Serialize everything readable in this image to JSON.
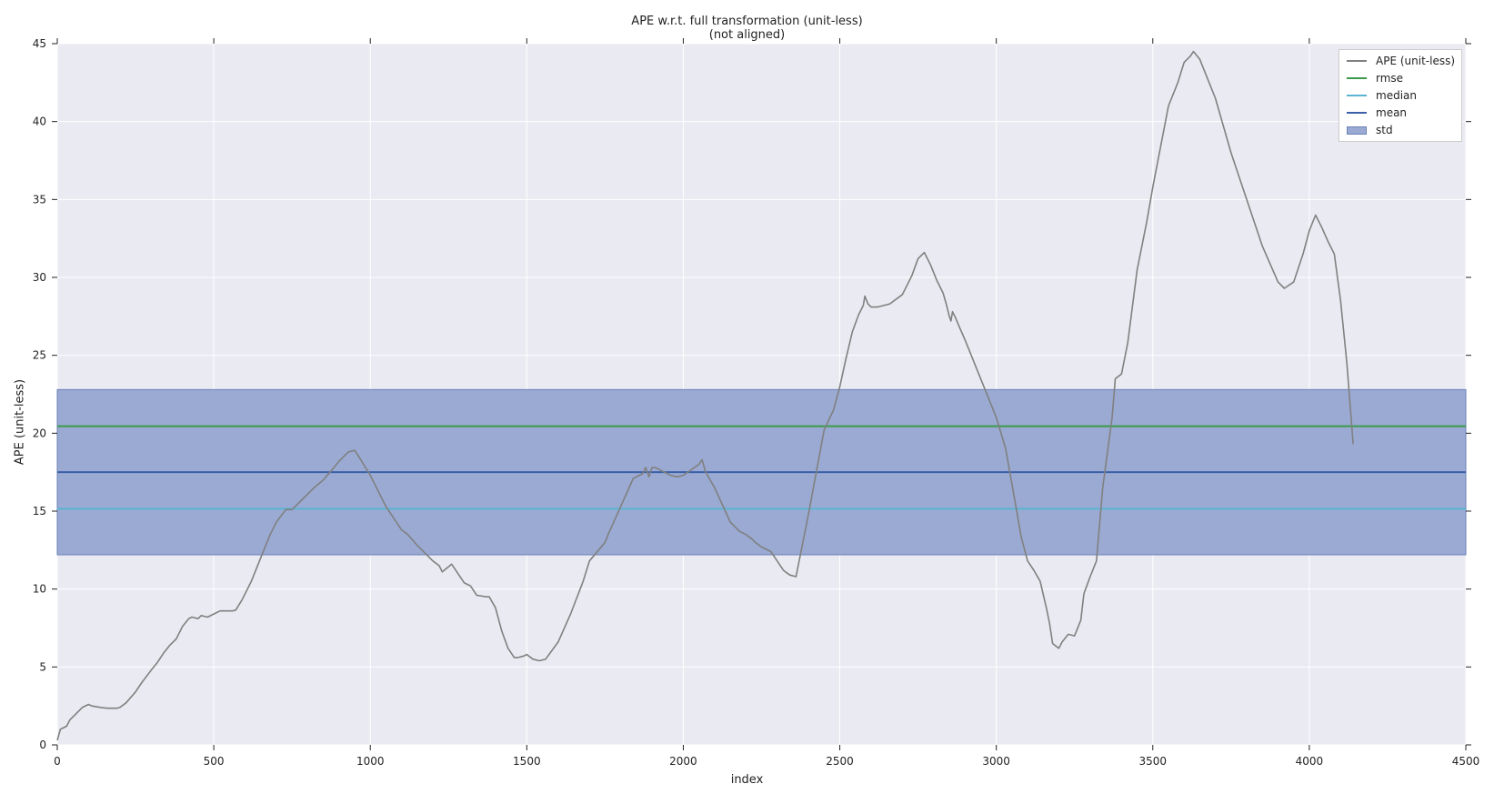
{
  "chart_data": {
    "type": "line",
    "title_lines": [
      "APE w.r.t. full transformation (unit-less)",
      "(not aligned)"
    ],
    "xlabel": "index",
    "ylabel": "APE (unit-less)",
    "xlim": [
      0,
      4500
    ],
    "ylim": [
      0,
      45
    ],
    "xticks": [
      0,
      500,
      1000,
      1500,
      2000,
      2500,
      3000,
      3500,
      4000,
      4500
    ],
    "yticks": [
      0,
      5,
      10,
      15,
      20,
      25,
      30,
      35,
      40,
      45
    ],
    "grid": true,
    "legend_position": "top-right",
    "series": [
      {
        "name": "APE (unit-less)",
        "color": "#808080",
        "x": [
          0,
          10,
          30,
          40,
          60,
          80,
          100,
          110,
          140,
          160,
          190,
          200,
          220,
          250,
          270,
          300,
          320,
          340,
          360,
          380,
          400,
          420,
          430,
          450,
          460,
          480,
          500,
          520,
          560,
          570,
          590,
          620,
          650,
          680,
          700,
          730,
          750,
          760,
          780,
          800,
          820,
          850,
          880,
          900,
          930,
          950,
          960,
          1000,
          1050,
          1100,
          1120,
          1150,
          1200,
          1220,
          1230,
          1260,
          1300,
          1310,
          1320,
          1340,
          1370,
          1380,
          1400,
          1420,
          1440,
          1460,
          1470,
          1490,
          1500,
          1520,
          1540,
          1560,
          1600,
          1640,
          1680,
          1700,
          1750,
          1760,
          1800,
          1840,
          1870,
          1880,
          1890,
          1900,
          1910,
          1920,
          1940,
          1960,
          1980,
          2000,
          2050,
          2060,
          2070,
          2080,
          2100,
          2150,
          2180,
          2200,
          2220,
          2230,
          2250,
          2280,
          2300,
          2320,
          2340,
          2360,
          2400,
          2450,
          2480,
          2500,
          2520,
          2540,
          2560,
          2575,
          2580,
          2590,
          2600,
          2620,
          2660,
          2700,
          2730,
          2750,
          2770,
          2790,
          2810,
          2830,
          2840,
          2850,
          2855,
          2860,
          2870,
          2880,
          2900,
          2950,
          3000,
          3030,
          3060,
          3080,
          3100,
          3120,
          3140,
          3160,
          3170,
          3180,
          3200,
          3210,
          3230,
          3250,
          3270,
          3280,
          3300,
          3320,
          3340,
          3370,
          3380,
          3400,
          3420,
          3450,
          3480,
          3500,
          3550,
          3580,
          3600,
          3620,
          3630,
          3650,
          3700,
          3750,
          3800,
          3850,
          3900,
          3920,
          3950,
          3980,
          4000,
          4020,
          4040,
          4060,
          4080,
          4100,
          4120,
          4140
        ],
        "y": [
          0.3,
          1.0,
          1.2,
          1.6,
          2.0,
          2.4,
          2.6,
          2.5,
          2.4,
          2.35,
          2.35,
          2.4,
          2.7,
          3.4,
          4.0,
          4.8,
          5.3,
          5.9,
          6.4,
          6.8,
          7.6,
          8.1,
          8.2,
          8.1,
          8.3,
          8.2,
          8.4,
          8.6,
          8.6,
          8.65,
          9.3,
          10.5,
          12.0,
          13.5,
          14.3,
          15.1,
          15.1,
          15.3,
          15.7,
          16.1,
          16.5,
          17.0,
          17.7,
          18.2,
          18.8,
          18.9,
          18.6,
          17.3,
          15.3,
          13.8,
          13.5,
          12.8,
          11.8,
          11.5,
          11.1,
          11.6,
          10.4,
          10.3,
          10.2,
          9.6,
          9.5,
          9.5,
          8.8,
          7.3,
          6.2,
          5.6,
          5.6,
          5.7,
          5.8,
          5.5,
          5.4,
          5.5,
          6.6,
          8.4,
          10.5,
          11.8,
          13.0,
          13.5,
          15.3,
          17.1,
          17.4,
          17.8,
          17.2,
          17.8,
          17.8,
          17.7,
          17.5,
          17.3,
          17.2,
          17.3,
          18.0,
          18.3,
          17.6,
          17.2,
          16.5,
          14.3,
          13.7,
          13.5,
          13.2,
          13.0,
          12.7,
          12.4,
          11.8,
          11.2,
          10.9,
          10.8,
          14.8,
          20.2,
          21.5,
          23.0,
          24.8,
          26.5,
          27.6,
          28.2,
          28.8,
          28.3,
          28.1,
          28.1,
          28.3,
          28.9,
          30.1,
          31.2,
          31.6,
          30.8,
          29.8,
          29.0,
          28.3,
          27.5,
          27.2,
          27.8,
          27.4,
          26.9,
          26.0,
          23.5,
          21.0,
          19.0,
          15.6,
          13.3,
          11.8,
          11.2,
          10.5,
          8.8,
          7.8,
          6.5,
          6.2,
          6.6,
          7.1,
          7.0,
          8.0,
          9.7,
          10.8,
          11.8,
          16.5,
          21.0,
          23.5,
          23.8,
          25.8,
          30.5,
          33.5,
          35.8,
          41.0,
          42.5,
          43.8,
          44.2,
          44.5,
          44.0,
          41.5,
          38.0,
          35.0,
          32.0,
          29.7,
          29.3,
          29.7,
          31.5,
          33.0,
          34.0,
          33.2,
          32.3,
          31.5,
          28.5,
          24.5,
          19.3
        ]
      },
      {
        "name": "rmse",
        "color": "#3b9a49",
        "constant": 20.45
      },
      {
        "name": "median",
        "color": "#5ab4d2",
        "constant": 15.15
      },
      {
        "name": "mean",
        "color": "#3b5fa8",
        "constant": 17.5
      },
      {
        "name": "std",
        "color": "#7e96c7",
        "band": [
          12.2,
          22.8
        ]
      }
    ]
  }
}
